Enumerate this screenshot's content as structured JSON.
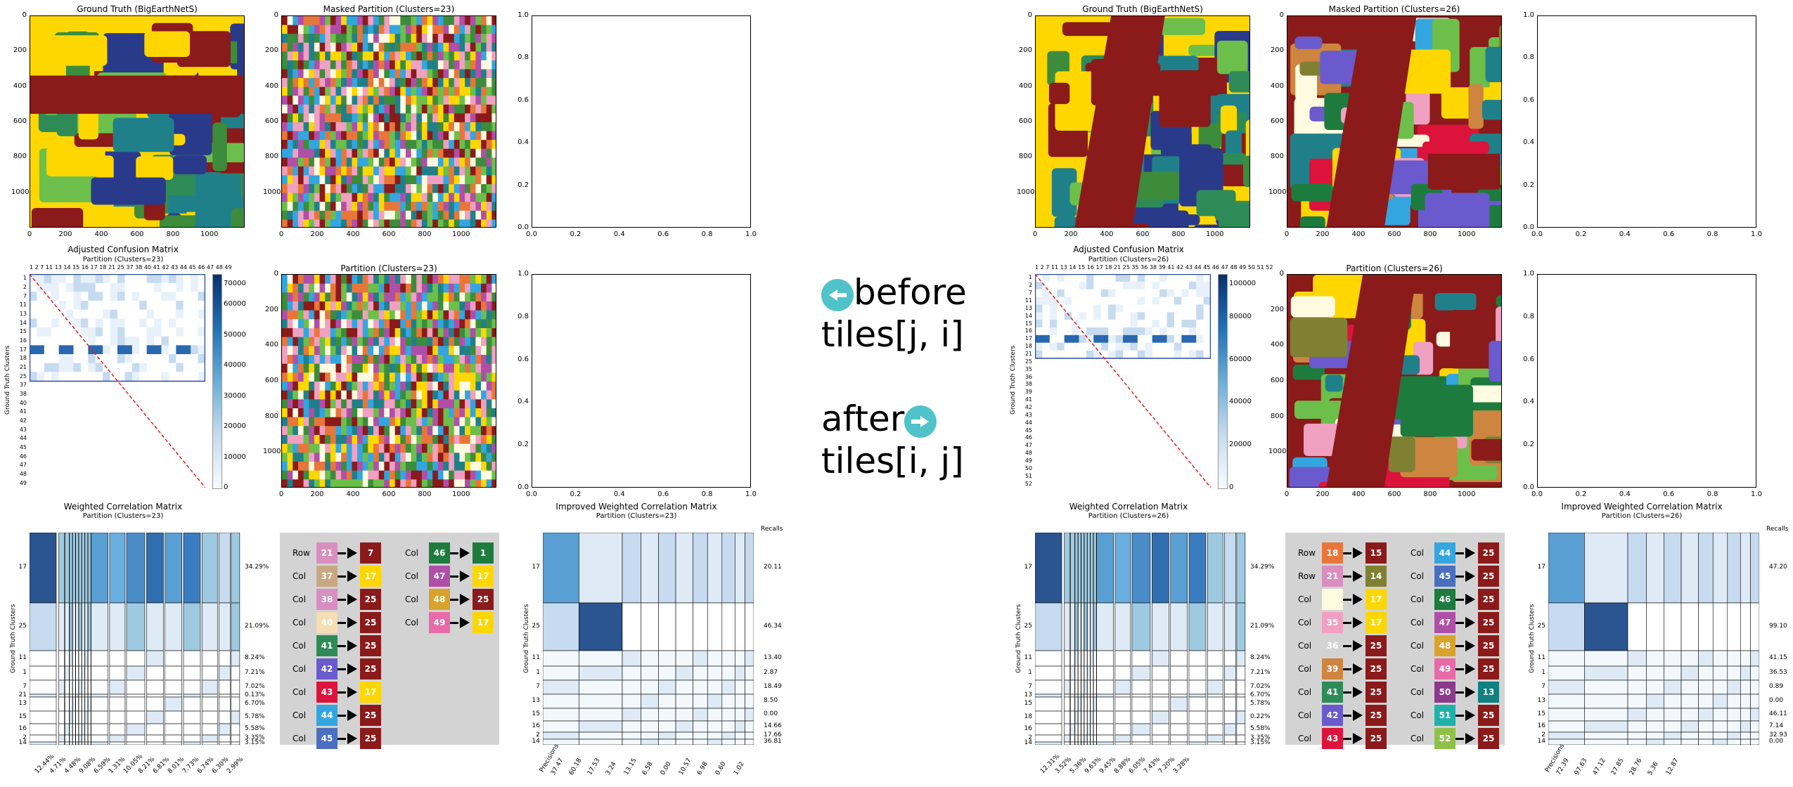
{
  "left": {
    "gt_title": "Ground Truth (BigEarthNetS)",
    "mask_title": "Masked Partition (Clusters=23)",
    "conf_title": "Adjusted Confusion Matrix",
    "conf_sub": "Partition (Clusters=23)",
    "part_title": "Partition (Clusters=23)",
    "wcm_title": "Weighted Correlation Matrix",
    "wcm_sub": "Partition (Clusters=23)",
    "iwcm_title": "Improved Weighted Correlation Matrix",
    "iwcm_sub": "Partition (Clusters=23)",
    "conf_top_ticks": "1  2   7  11 13 14 15 16 17 18 21 25 37 38 40 41 42 43 44 45 46 47 48 49",
    "conf_rows": [
      "1",
      "2",
      "7",
      "11",
      "13",
      "14",
      "15",
      "16",
      "17",
      "18",
      "21",
      "25",
      "37",
      "38",
      "40",
      "41",
      "42",
      "43",
      "44",
      "45",
      "46",
      "47",
      "48",
      "49"
    ],
    "conf_cbar": [
      "70000",
      "60000",
      "50000",
      "40000",
      "30000",
      "20000",
      "10000",
      "0"
    ],
    "wcm_rows": [
      "17",
      "25",
      "11",
      "1",
      "7",
      "21",
      "13",
      "15",
      "16",
      "2",
      "14"
    ],
    "wcm_pct": [
      "34.29%",
      "21.09%",
      "8.24%",
      "7.21%",
      "7.02%",
      "0.13%",
      "6.70%",
      "5.78%",
      "5.58%",
      "3.35%",
      "3.15%"
    ],
    "wcm_bottom": [
      "12.44%",
      "4.71%",
      "4.48%",
      "9.08%",
      "6.59%",
      "1.31%",
      "10.05%",
      "8.21%",
      "6.81%",
      "8.01%",
      "7.73%",
      "6.74%",
      "6.30%",
      "2.99%"
    ],
    "iwcm_rows": [
      "17",
      "25",
      "11",
      "1",
      "7",
      "13",
      "15",
      "16",
      "2",
      "14"
    ],
    "iwcm_recalls": [
      "20.11",
      "46.34",
      "13.40",
      "2.87",
      "18.49",
      "8.50",
      "0.00",
      "14.66",
      "17.66",
      "36.81"
    ],
    "iwcm_bottom": [
      "37.47",
      "60.18",
      "17.53",
      "3.24",
      "13.15",
      "6.58",
      "0.00",
      "10.57",
      "6.98",
      "0.60",
      "1.02"
    ],
    "legend": [
      {
        "lab": "Row",
        "num": "21",
        "c": "#d98ec0",
        "tnum": "7",
        "tc": "#8b1a1a"
      },
      {
        "lab": "Col",
        "num": "37",
        "c": "#c8a882",
        "tnum": "17",
        "tc": "#ffd700"
      },
      {
        "lab": "Col",
        "num": "38",
        "c": "#d98ec0",
        "tnum": "25",
        "tc": "#8b1a1a"
      },
      {
        "lab": "Col",
        "num": "40",
        "c": "#f5deb3",
        "tnum": "25",
        "tc": "#8b1a1a"
      },
      {
        "lab": "Col",
        "num": "41",
        "c": "#2e8b57",
        "tnum": "25",
        "tc": "#8b1a1a"
      },
      {
        "lab": "Col",
        "num": "42",
        "c": "#6a5acd",
        "tnum": "25",
        "tc": "#8b1a1a"
      },
      {
        "lab": "Col",
        "num": "43",
        "c": "#dc143c",
        "tnum": "17",
        "tc": "#ffd700"
      },
      {
        "lab": "Col",
        "num": "44",
        "c": "#33a6e0",
        "tnum": "25",
        "tc": "#8b1a1a"
      },
      {
        "lab": "Col",
        "num": "45",
        "c": "#4a6fc0",
        "tnum": "25",
        "tc": "#8b1a1a"
      }
    ],
    "legend2": [
      {
        "lab": "Col",
        "num": "46",
        "c": "#1e7b3e",
        "tnum": "1",
        "tc": "#1e7b3e"
      },
      {
        "lab": "Col",
        "num": "47",
        "c": "#b04fa8",
        "tnum": "17",
        "tc": "#ffd700"
      },
      {
        "lab": "Col",
        "num": "48",
        "c": "#d9a32b",
        "tnum": "25",
        "tc": "#8b1a1a"
      },
      {
        "lab": "Col",
        "num": "49",
        "c": "#e86ba8",
        "tnum": "17",
        "tc": "#ffd700"
      }
    ]
  },
  "right": {
    "gt_title": "Ground Truth (BigEarthNetS)",
    "mask_title": "Masked Partition (Clusters=26)",
    "conf_title": "Adjusted Confusion Matrix",
    "conf_sub": "Partition (Clusters=26)",
    "part_title": "Partition (Clusters=26)",
    "wcm_title": "Weighted Correlation Matrix",
    "wcm_sub": "Partition (Clusters=26)",
    "iwcm_title": "Improved Weighted Correlation Matrix",
    "iwcm_sub": "Partition (Clusters=26)",
    "conf_top_ticks": "1  2   7  11 13 14 15 16 17 18 21 25 35 36 38 39 41 42 43 44 45 46 47 48 49 50 51 52",
    "conf_rows": [
      "1",
      "2",
      "7",
      "11",
      "13",
      "14",
      "15",
      "16",
      "17",
      "18",
      "21",
      "25",
      "35",
      "36",
      "38",
      "39",
      "41",
      "42",
      "43",
      "44",
      "45",
      "46",
      "47",
      "48",
      "49",
      "50",
      "51",
      "52"
    ],
    "conf_cbar": [
      "100000",
      "80000",
      "60000",
      "40000",
      "20000",
      "0"
    ],
    "wcm_rows": [
      "17",
      "25",
      "11",
      "1",
      "7",
      "13",
      "15",
      "18",
      "16",
      "2",
      "14"
    ],
    "wcm_pct": [
      "34.29%",
      "21.09%",
      "8.24%",
      "7.21%",
      "7.02%",
      "6.70%",
      "5.78%",
      "0.22%",
      "5.58%",
      "3.35%",
      "3.15%"
    ],
    "wcm_bottom": [
      "12.31%",
      "3.52%",
      "5.36%",
      "9.63%",
      "9.45%",
      "8.88%",
      "6.05%",
      "7.43%",
      "7.20%",
      "3.28%"
    ],
    "iwcm_rows": [
      "17",
      "25",
      "11",
      "1",
      "7",
      "13",
      "15",
      "16",
      "2",
      "14"
    ],
    "iwcm_recalls": [
      "47.20",
      "99.10",
      "41.15",
      "36.53",
      "0.89",
      "0.00",
      "46.11",
      "7.14",
      "32.93",
      "0.00"
    ],
    "iwcm_bottom": [
      "72.39",
      "97.63",
      "47.12",
      "27.85",
      "28.76",
      "5.36",
      "12.87"
    ],
    "legend": [
      {
        "lab": "Row",
        "num": "18",
        "c": "#e8763a",
        "tnum": "15",
        "tc": "#8b1a1a"
      },
      {
        "lab": "Row",
        "num": "21",
        "c": "#d98ec0",
        "tnum": "14",
        "tc": "#808032"
      },
      {
        "lab": "Col",
        "num": "",
        "c": "#fffbe0",
        "tnum": "17",
        "tc": "#ffd700"
      },
      {
        "lab": "Col",
        "num": "35",
        "c": "#f0a0c0",
        "tnum": "17",
        "tc": "#ffd700"
      },
      {
        "lab": "Col",
        "num": "36",
        "c": "#d3d3d3",
        "tnum": "25",
        "tc": "#8b1a1a"
      },
      {
        "lab": "Col",
        "num": "39",
        "c": "#cd853f",
        "tnum": "25",
        "tc": "#8b1a1a"
      },
      {
        "lab": "Col",
        "num": "41",
        "c": "#2e8b57",
        "tnum": "25",
        "tc": "#8b1a1a"
      },
      {
        "lab": "Col",
        "num": "42",
        "c": "#6a5acd",
        "tnum": "25",
        "tc": "#8b1a1a"
      },
      {
        "lab": "Col",
        "num": "43",
        "c": "#dc143c",
        "tnum": "25",
        "tc": "#8b1a1a"
      }
    ],
    "legend2": [
      {
        "lab": "Col",
        "num": "44",
        "c": "#33a6e0",
        "tnum": "25",
        "tc": "#8b1a1a"
      },
      {
        "lab": "Col",
        "num": "45",
        "c": "#4a6fc0",
        "tnum": "25",
        "tc": "#8b1a1a"
      },
      {
        "lab": "Col",
        "num": "46",
        "c": "#1e7b3e",
        "tnum": "25",
        "tc": "#8b1a1a"
      },
      {
        "lab": "Col",
        "num": "47",
        "c": "#b04fa8",
        "tnum": "25",
        "tc": "#8b1a1a"
      },
      {
        "lab": "Col",
        "num": "48",
        "c": "#d9a32b",
        "tnum": "25",
        "tc": "#8b1a1a"
      },
      {
        "lab": "Col",
        "num": "49",
        "c": "#e86ba8",
        "tnum": "25",
        "tc": "#8b1a1a"
      },
      {
        "lab": "Col",
        "num": "50",
        "c": "#8b3a8b",
        "tnum": "13",
        "tc": "#108080"
      },
      {
        "lab": "Col",
        "num": "51",
        "c": "#20b2aa",
        "tnum": "25",
        "tc": "#8b1a1a"
      },
      {
        "lab": "Col",
        "num": "52",
        "c": "#8fc04a",
        "tnum": "25",
        "tc": "#8b1a1a"
      }
    ]
  },
  "middle": {
    "before_word": "before",
    "before_code": "tiles[j, i]",
    "after_word": "after",
    "after_code": "tiles[i, j]"
  },
  "axes": {
    "img_ticks_y": [
      "0",
      "200",
      "400",
      "600",
      "800",
      "1000"
    ],
    "img_ticks_x": [
      "0",
      "200",
      "400",
      "600",
      "800",
      "1000"
    ],
    "empty_ticks_y": [
      "1.0",
      "0.8",
      "0.6",
      "0.4",
      "0.2",
      "0.0"
    ],
    "empty_ticks_x": [
      "0.0",
      "0.2",
      "0.4",
      "0.6",
      "0.8",
      "1.0"
    ],
    "gt_clusters_label": "Ground Truth Clusters",
    "recalls_label": "Recalls",
    "precisions_label": "Precisions"
  },
  "chart_data": [
    {
      "type": "heatmap",
      "title": "Adjusted Confusion Matrix",
      "xlabel": "Partition (Clusters=23)",
      "ylabel": "Ground Truth Clusters",
      "clim": [
        0,
        70000
      ]
    },
    {
      "type": "heatmap",
      "title": "Weighted Correlation Matrix",
      "xlabel": "Partition (Clusters=23)",
      "ylabel": "Ground Truth Clusters"
    },
    {
      "type": "heatmap",
      "title": "Improved Weighted Correlation Matrix",
      "xlabel": "Partition (Clusters=23)",
      "ylabel": "Ground Truth Clusters"
    },
    {
      "type": "heatmap",
      "title": "Adjusted Confusion Matrix",
      "xlabel": "Partition (Clusters=26)",
      "ylabel": "Ground Truth Clusters",
      "clim": [
        0,
        110000
      ]
    },
    {
      "type": "heatmap",
      "title": "Weighted Correlation Matrix",
      "xlabel": "Partition (Clusters=26)",
      "ylabel": "Ground Truth Clusters"
    },
    {
      "type": "heatmap",
      "title": "Improved Weighted Correlation Matrix",
      "xlabel": "Partition (Clusters=26)",
      "ylabel": "Ground Truth Clusters"
    }
  ]
}
